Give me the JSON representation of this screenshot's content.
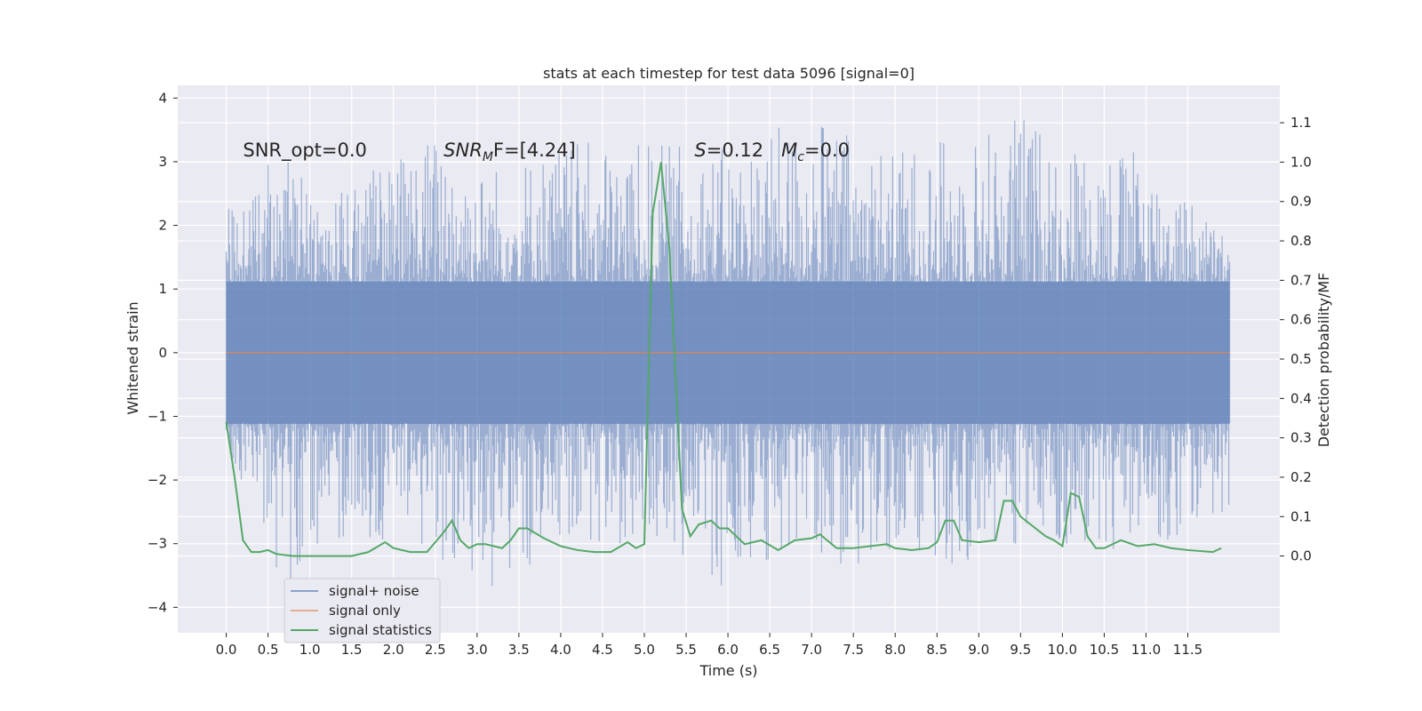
{
  "chart_data": {
    "type": "line",
    "title": "stats at each timestep for test data 5096 [signal=0]",
    "xlabel": "Time (s)",
    "ylabel": "Whitened strain",
    "y2label": "Detection probability/MF",
    "xlim": [
      -0.58,
      12.6
    ],
    "ylim": [
      -4.4,
      4.2
    ],
    "y2lim": [
      -0.195,
      1.195
    ],
    "x_ticks": [
      0.0,
      0.5,
      1.0,
      1.5,
      2.0,
      2.5,
      3.0,
      3.5,
      4.0,
      4.5,
      5.0,
      5.5,
      6.0,
      6.5,
      7.0,
      7.5,
      8.0,
      8.5,
      9.0,
      9.5,
      10.0,
      10.5,
      11.0,
      11.5
    ],
    "x_tick_labels": [
      "0.0",
      "0.5",
      "1.0",
      "1.5",
      "2.0",
      "2.5",
      "3.0",
      "3.5",
      "4.0",
      "4.5",
      "5.0",
      "5.5",
      "6.0",
      "6.5",
      "7.0",
      "7.5",
      "8.0",
      "8.5",
      "9.0",
      "9.5",
      "10.0",
      "10.5",
      "11.0",
      "11.5"
    ],
    "y_ticks": [
      -4,
      -3,
      -2,
      -1,
      0,
      1,
      2,
      3,
      4
    ],
    "y_tick_labels": [
      "−4",
      "−3",
      "−2",
      "−1",
      "0",
      "1",
      "2",
      "3",
      "4"
    ],
    "y2_ticks": [
      0.0,
      0.1,
      0.2,
      0.3,
      0.4,
      0.5,
      0.6,
      0.7,
      0.8,
      0.9,
      1.0,
      1.1
    ],
    "y2_tick_labels": [
      "0.0",
      "0.1",
      "0.2",
      "0.3",
      "0.4",
      "0.5",
      "0.6",
      "0.7",
      "0.8",
      "0.9",
      "1.0",
      "1.1"
    ],
    "grid": true,
    "legend_position": "lower-left",
    "annotations": [
      {
        "text": "SNR_opt=0.0",
        "x": 0.2,
        "y": 3.08
      },
      {
        "text": "SNR_MF=[4.24]",
        "x": 2.6,
        "y": 3.08
      },
      {
        "text": "S=0.12   M_c=0.0",
        "x": 5.6,
        "y": 3.08
      }
    ],
    "series": [
      {
        "name": "signal+ noise",
        "color": "#4c72b0",
        "opacity": 0.5,
        "x_range": [
          0.0,
          12.0
        ],
        "envelope_upper": [
          [
            0.0,
            2.35
          ],
          [
            0.4,
            2.6
          ],
          [
            0.5,
            3.0
          ],
          [
            0.8,
            3.0
          ],
          [
            1.0,
            2.5
          ],
          [
            2.0,
            3.1
          ],
          [
            2.6,
            3.55
          ],
          [
            3.0,
            2.9
          ],
          [
            4.0,
            3.3
          ],
          [
            5.0,
            3.3
          ],
          [
            5.4,
            3.3
          ],
          [
            6.0,
            3.2
          ],
          [
            7.0,
            3.75
          ],
          [
            8.0,
            3.2
          ],
          [
            9.0,
            3.5
          ],
          [
            9.45,
            3.85
          ],
          [
            10.0,
            3.4
          ],
          [
            11.0,
            3.15
          ],
          [
            12.0,
            1.8
          ]
        ],
        "envelope_lower": [
          [
            0.0,
            -1.5
          ],
          [
            0.5,
            -3.0
          ],
          [
            0.7,
            -3.8
          ],
          [
            1.0,
            -3.0
          ],
          [
            2.0,
            -3.0
          ],
          [
            2.6,
            -3.35
          ],
          [
            3.2,
            -3.75
          ],
          [
            4.0,
            -3.0
          ],
          [
            5.0,
            -3.0
          ],
          [
            6.0,
            -3.75
          ],
          [
            7.0,
            -3.0
          ],
          [
            7.5,
            -3.6
          ],
          [
            8.0,
            -3.0
          ],
          [
            8.7,
            -3.35
          ],
          [
            9.5,
            -3.0
          ],
          [
            10.0,
            -3.0
          ],
          [
            11.0,
            -3.2
          ],
          [
            12.0,
            -2.5
          ]
        ]
      },
      {
        "name": "signal only",
        "color": "#dd8452",
        "axis": "left",
        "x": [
          0.0,
          12.0
        ],
        "y": [
          0.0,
          0.0
        ]
      },
      {
        "name": "signal statistics",
        "color": "#55a868",
        "axis": "right",
        "x": [
          0.0,
          0.1,
          0.2,
          0.3,
          0.4,
          0.5,
          0.6,
          0.8,
          1.0,
          1.2,
          1.5,
          1.7,
          1.9,
          2.0,
          2.2,
          2.4,
          2.6,
          2.7,
          2.8,
          2.9,
          3.0,
          3.1,
          3.3,
          3.4,
          3.5,
          3.6,
          3.8,
          4.0,
          4.2,
          4.4,
          4.6,
          4.8,
          4.9,
          5.0,
          5.1,
          5.2,
          5.3,
          5.45,
          5.55,
          5.65,
          5.8,
          5.9,
          6.0,
          6.2,
          6.4,
          6.6,
          6.8,
          7.0,
          7.1,
          7.3,
          7.5,
          7.7,
          7.9,
          8.0,
          8.2,
          8.4,
          8.5,
          8.6,
          8.7,
          8.8,
          9.0,
          9.2,
          9.3,
          9.4,
          9.5,
          9.8,
          9.9,
          10.0,
          10.1,
          10.2,
          10.3,
          10.4,
          10.5,
          10.7,
          10.9,
          11.1,
          11.3,
          11.5,
          11.8,
          11.9
        ],
        "y": [
          0.34,
          0.2,
          0.04,
          0.01,
          0.01,
          0.015,
          0.005,
          0.0,
          0.0,
          0.0,
          0.0,
          0.01,
          0.035,
          0.02,
          0.01,
          0.01,
          0.06,
          0.09,
          0.04,
          0.02,
          0.03,
          0.03,
          0.02,
          0.04,
          0.07,
          0.07,
          0.045,
          0.025,
          0.015,
          0.01,
          0.01,
          0.035,
          0.02,
          0.03,
          0.87,
          1.0,
          0.78,
          0.12,
          0.05,
          0.08,
          0.09,
          0.07,
          0.07,
          0.03,
          0.04,
          0.015,
          0.04,
          0.045,
          0.055,
          0.02,
          0.02,
          0.025,
          0.03,
          0.02,
          0.015,
          0.02,
          0.035,
          0.09,
          0.09,
          0.04,
          0.035,
          0.04,
          0.14,
          0.14,
          0.1,
          0.05,
          0.04,
          0.025,
          0.16,
          0.15,
          0.05,
          0.02,
          0.02,
          0.04,
          0.025,
          0.03,
          0.02,
          0.015,
          0.01,
          0.02
        ]
      }
    ]
  }
}
